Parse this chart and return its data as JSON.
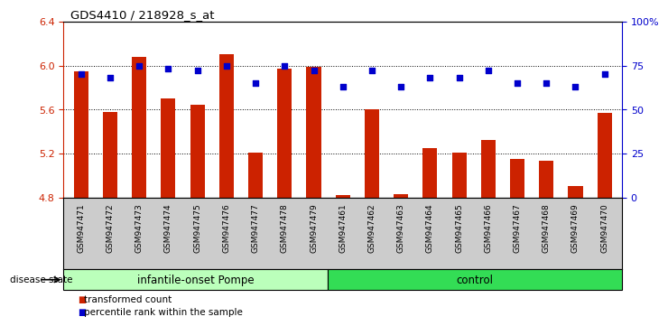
{
  "title": "GDS4410 / 218928_s_at",
  "samples": [
    "GSM947471",
    "GSM947472",
    "GSM947473",
    "GSM947474",
    "GSM947475",
    "GSM947476",
    "GSM947477",
    "GSM947478",
    "GSM947479",
    "GSM947461",
    "GSM947462",
    "GSM947463",
    "GSM947464",
    "GSM947465",
    "GSM947466",
    "GSM947467",
    "GSM947468",
    "GSM947469",
    "GSM947470"
  ],
  "bar_values": [
    5.95,
    5.58,
    6.08,
    5.7,
    5.64,
    6.1,
    5.21,
    5.97,
    5.99,
    4.82,
    5.6,
    4.83,
    5.25,
    5.21,
    5.32,
    5.15,
    5.13,
    4.9,
    5.57
  ],
  "dot_values_pct": [
    70,
    68,
    75,
    73,
    72,
    75,
    65,
    75,
    72,
    63,
    72,
    63,
    68,
    68,
    72,
    65,
    65,
    63,
    70
  ],
  "bar_color": "#cc2200",
  "dot_color": "#0000cc",
  "ylim_left": [
    4.8,
    6.4
  ],
  "ylim_right": [
    0,
    100
  ],
  "yticks_left": [
    4.8,
    5.2,
    5.6,
    6.0,
    6.4
  ],
  "yticks_right": [
    0,
    25,
    50,
    75,
    100
  ],
  "ytick_labels_right": [
    "0",
    "25",
    "50",
    "75",
    "100%"
  ],
  "group1_label": "infantile-onset Pompe",
  "group2_label": "control",
  "group1_count": 9,
  "group2_count": 10,
  "group1_color": "#bbffbb",
  "group2_color": "#33dd55",
  "disease_state_label": "disease state",
  "legend_bar_label": "transformed count",
  "legend_dot_label": "percentile rank within the sample",
  "bar_width": 0.5,
  "grid_color": "black",
  "grid_style": "dotted"
}
